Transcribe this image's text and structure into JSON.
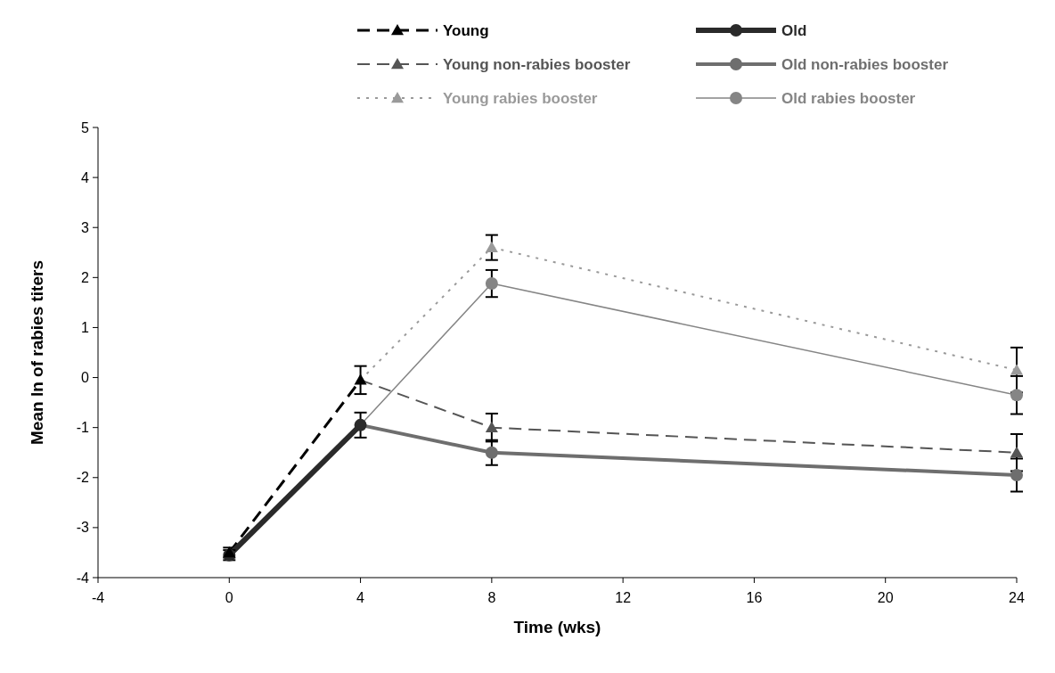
{
  "chart_data": {
    "type": "line",
    "xlabel": "Time (wks)",
    "ylabel": "Mean ln of rabies titers",
    "xlim": [
      -4,
      24
    ],
    "xticks": [
      -4,
      0,
      4,
      8,
      12,
      16,
      20,
      24
    ],
    "ylim": [
      -4,
      5
    ],
    "yticks": [
      -4,
      -3,
      -2,
      -1,
      0,
      1,
      2,
      3,
      4,
      5
    ],
    "grid": false,
    "legend": "top right",
    "series": [
      {
        "name": "Young",
        "color": "#000000",
        "line_style": "dashed",
        "marker": "triangle",
        "x": [
          0,
          4
        ],
        "values": [
          -3.5,
          -0.05
        ],
        "errors": [
          0.1,
          0.28
        ]
      },
      {
        "name": "Old",
        "color": "#2a2a2a",
        "line_style": "solid",
        "marker": "circle",
        "x": [
          0,
          4
        ],
        "values": [
          -3.55,
          -0.95
        ],
        "errors": [
          0.1,
          0.25
        ]
      },
      {
        "name": "Young non-rabies booster",
        "color": "#555555",
        "line_style": "dashed",
        "marker": "triangle",
        "x": [
          4,
          8,
          24
        ],
        "values": [
          -0.05,
          -1.0,
          -1.5
        ],
        "errors": [
          null,
          0.28,
          0.37
        ]
      },
      {
        "name": "Old non-rabies booster",
        "color": "#6e6e6e",
        "line_style": "solid",
        "marker": "circle",
        "x": [
          4,
          8,
          24
        ],
        "values": [
          -0.95,
          -1.5,
          -1.95
        ],
        "errors": [
          null,
          0.25,
          0.33
        ]
      },
      {
        "name": "Young rabies booster",
        "color": "#9a9a9a",
        "line_style": "dotted",
        "marker": "triangle",
        "x": [
          4,
          8,
          24
        ],
        "values": [
          -0.05,
          2.6,
          0.15
        ],
        "errors": [
          null,
          0.25,
          0.45
        ]
      },
      {
        "name": "Old rabies booster",
        "color": "#858585",
        "line_style": "solid",
        "marker": "circle",
        "x": [
          4,
          8,
          24
        ],
        "values": [
          -0.95,
          1.88,
          -0.35
        ],
        "errors": [
          null,
          0.27,
          0.38
        ]
      }
    ]
  }
}
